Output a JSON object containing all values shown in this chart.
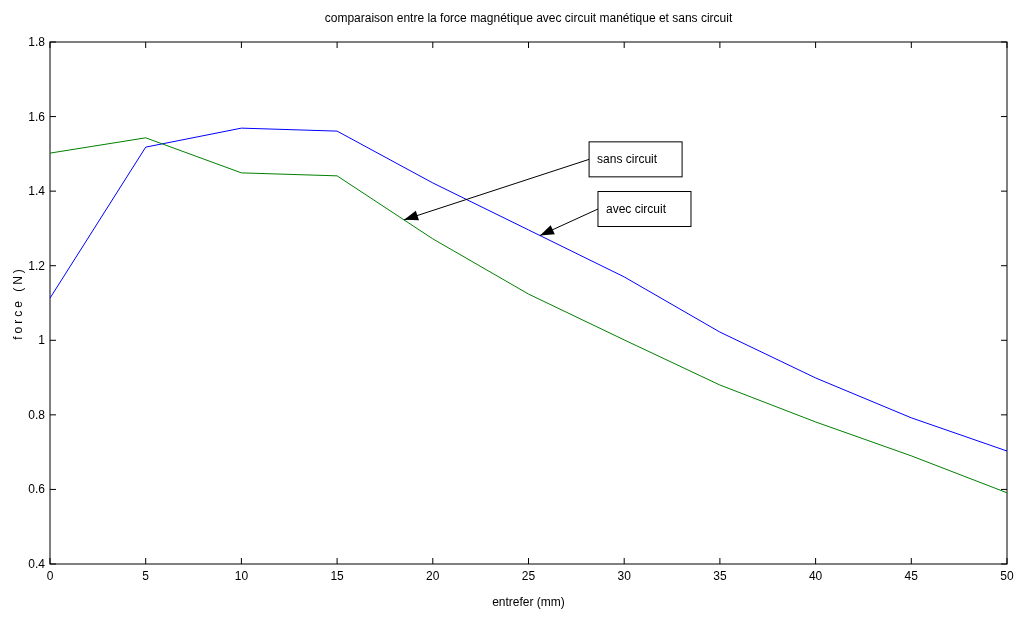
{
  "chart_data": {
    "type": "line",
    "title": "comparaison entre la force magnétique avec circuit manétique et sans circuit",
    "xlabel": "entrefer (mm)",
    "ylabel": "force (N)",
    "x": [
      0,
      5,
      10,
      15,
      20,
      25,
      30,
      35,
      40,
      45,
      50
    ],
    "series": [
      {
        "color": "#0000ff",
        "values": [
          1.113,
          1.518,
          1.569,
          1.561,
          1.422,
          1.296,
          1.17,
          1.022,
          0.899,
          0.792,
          0.703
        ]
      },
      {
        "color": "#008000",
        "values": [
          1.502,
          1.543,
          1.449,
          1.441,
          1.272,
          1.124,
          1.001,
          0.88,
          0.781,
          0.69,
          0.591
        ]
      }
    ],
    "xlim": [
      0,
      50
    ],
    "xticks": [
      0,
      5,
      10,
      15,
      20,
      25,
      30,
      35,
      40,
      45,
      50
    ],
    "ylim": [
      0.4,
      1.8
    ],
    "yticks": [
      0.4,
      0.6,
      0.8,
      1,
      1.2,
      1.4,
      1.6,
      1.8
    ],
    "grid": false,
    "marker": "none",
    "line_style": "solid",
    "annotations": [
      {
        "text": "sans circuit",
        "x": 18.5,
        "y": 1.323
      },
      {
        "text": "avec circuit",
        "x": 25.6,
        "y": 1.281
      }
    ]
  }
}
